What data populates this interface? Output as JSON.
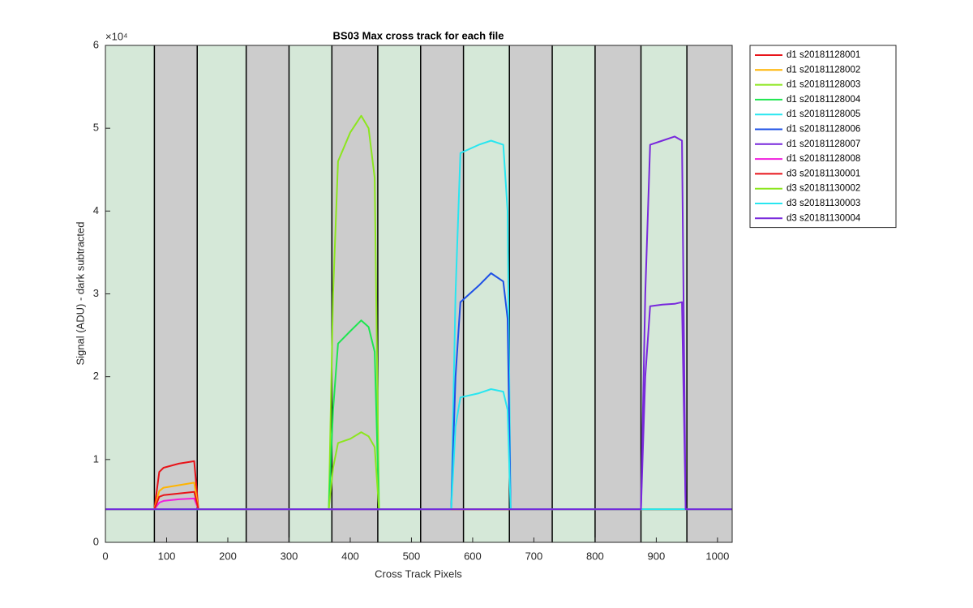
{
  "chart_data": {
    "type": "line",
    "title": "BS03  Max cross track for each file",
    "xlabel": "Cross Track Pixels",
    "ylabel": "Signal (ADU) - dark subtracted",
    "y_multiplier": "×10⁴",
    "xlim": [
      0,
      1024
    ],
    "ylim": [
      0,
      60000
    ],
    "xticks": [
      0,
      100,
      200,
      300,
      400,
      500,
      600,
      700,
      800,
      900,
      1000
    ],
    "yticks": [
      0,
      {
        "value": 10000,
        "label": "1"
      },
      {
        "value": 20000,
        "label": "2"
      },
      {
        "value": 30000,
        "label": "3"
      },
      {
        "value": 40000,
        "label": "4"
      },
      {
        "value": 50000,
        "label": "5"
      },
      {
        "value": 60000,
        "label": "6"
      }
    ],
    "grid": false,
    "legend": "outside-right",
    "band_edges": [
      0,
      80,
      150,
      230,
      300,
      370,
      445,
      515,
      585,
      660,
      730,
      800,
      875,
      950,
      1024
    ],
    "band_colors": [
      "#d5e8d8",
      "#cccccc"
    ],
    "x": [
      0,
      80,
      88,
      95,
      120,
      145,
      152,
      365,
      372,
      380,
      400,
      418,
      430,
      440,
      447,
      565,
      572,
      580,
      610,
      630,
      650,
      657,
      662,
      875,
      882,
      890,
      910,
      930,
      942,
      948,
      1024
    ],
    "series": [
      {
        "name": "d1 s20181128001",
        "color": "#e8141a",
        "values": [
          4000,
          4000,
          8500,
          9000,
          9500,
          9800,
          4000,
          4000,
          4000,
          4000,
          4000,
          4000,
          4000,
          4000,
          4000,
          4000,
          4000,
          4000,
          4000,
          4000,
          4000,
          4000,
          4000,
          4000,
          4000,
          4000,
          4000,
          4000,
          4000,
          4000,
          4000
        ]
      },
      {
        "name": "d1 s20181128002",
        "color": "#ffb400",
        "values": [
          4000,
          4000,
          6200,
          6600,
          6900,
          7200,
          4000,
          4000,
          4000,
          4000,
          4000,
          4000,
          4000,
          4000,
          4000,
          4000,
          4000,
          4000,
          4000,
          4000,
          4000,
          4000,
          4000,
          4000,
          4000,
          4000,
          4000,
          4000,
          4000,
          4000,
          4000
        ]
      },
      {
        "name": "d1 s20181128003",
        "color": "#8ce61e",
        "values": [
          4000,
          4000,
          4000,
          4000,
          4000,
          4000,
          4000,
          4000,
          30000,
          46000,
          49500,
          51500,
          50000,
          44000,
          4000,
          4000,
          4000,
          4000,
          4000,
          4000,
          4000,
          4000,
          4000,
          4000,
          4000,
          4000,
          4000,
          4000,
          4000,
          4000,
          4000
        ]
      },
      {
        "name": "d1 s20181128004",
        "color": "#1ee650",
        "values": [
          4000,
          4000,
          4000,
          4000,
          4000,
          4000,
          4000,
          4000,
          16000,
          24000,
          25500,
          26800,
          26000,
          23000,
          4000,
          4000,
          4000,
          4000,
          4000,
          4000,
          4000,
          4000,
          4000,
          4000,
          4000,
          4000,
          4000,
          4000,
          4000,
          4000,
          4000
        ]
      },
      {
        "name": "d1 s20181128005",
        "color": "#28e6f0",
        "values": [
          4000,
          4000,
          4000,
          4000,
          4000,
          4000,
          4000,
          4000,
          4000,
          4000,
          4000,
          4000,
          4000,
          4000,
          4000,
          4000,
          30000,
          47000,
          48000,
          48500,
          48000,
          40000,
          4000,
          4000,
          4000,
          4000,
          4000,
          4000,
          4000,
          4000,
          4000
        ]
      },
      {
        "name": "d1 s20181128006",
        "color": "#1e50e6",
        "values": [
          4000,
          4000,
          4000,
          4000,
          4000,
          4000,
          4000,
          4000,
          4000,
          4000,
          4000,
          4000,
          4000,
          4000,
          4000,
          4000,
          20000,
          29000,
          31000,
          32500,
          31500,
          27000,
          4000,
          4000,
          4000,
          4000,
          4000,
          4000,
          4000,
          4000,
          4000
        ]
      },
      {
        "name": "d1 s20181128007",
        "color": "#7828dc",
        "values": [
          4000,
          4000,
          4000,
          4000,
          4000,
          4000,
          4000,
          4000,
          4000,
          4000,
          4000,
          4000,
          4000,
          4000,
          4000,
          4000,
          4000,
          4000,
          4000,
          4000,
          4000,
          4000,
          4000,
          4000,
          30000,
          48000,
          48500,
          49000,
          48500,
          4000,
          4000
        ]
      },
      {
        "name": "d1 s20181128008",
        "color": "#f01edc",
        "values": [
          4000,
          4000,
          4800,
          5000,
          5200,
          5300,
          4000,
          4000,
          4000,
          4000,
          4000,
          4000,
          4000,
          4000,
          4000,
          4000,
          4000,
          4000,
          4000,
          4000,
          4000,
          4000,
          4000,
          4000,
          4000,
          4000,
          4000,
          4000,
          4000,
          4000,
          4000
        ]
      },
      {
        "name": "d3 s20181130001",
        "color": "#e8141a",
        "values": [
          4000,
          4000,
          5500,
          5700,
          5900,
          6100,
          4000,
          4000,
          4000,
          4000,
          4000,
          4000,
          4000,
          4000,
          4000,
          4000,
          4000,
          4000,
          4000,
          4000,
          4000,
          4000,
          4000,
          4000,
          4000,
          4000,
          4000,
          4000,
          4000,
          4000,
          4000
        ]
      },
      {
        "name": "d3 s20181130002",
        "color": "#8ce61e",
        "values": [
          4000,
          4000,
          4000,
          4000,
          4000,
          4000,
          4000,
          4000,
          9000,
          12000,
          12500,
          13300,
          12800,
          11500,
          4000,
          4000,
          4000,
          4000,
          4000,
          4000,
          4000,
          4000,
          4000,
          4000,
          4000,
          4000,
          4000,
          4000,
          4000,
          4000,
          4000
        ]
      },
      {
        "name": "d3 s20181130003",
        "color": "#28e6f0",
        "values": [
          4000,
          4000,
          4000,
          4000,
          4000,
          4000,
          4000,
          4000,
          4000,
          4000,
          4000,
          4000,
          4000,
          4000,
          4000,
          4000,
          14000,
          17500,
          18000,
          18500,
          18200,
          16000,
          4000,
          4000,
          4000,
          4000,
          4000,
          4000,
          4000,
          4000,
          4000
        ]
      },
      {
        "name": "d3 s20181130004",
        "color": "#7828dc",
        "values": [
          4000,
          4000,
          4000,
          4000,
          4000,
          4000,
          4000,
          4000,
          4000,
          4000,
          4000,
          4000,
          4000,
          4000,
          4000,
          4000,
          4000,
          4000,
          4000,
          4000,
          4000,
          4000,
          4000,
          4000,
          20000,
          28500,
          28700,
          28800,
          29000,
          4000,
          4000
        ]
      }
    ]
  }
}
